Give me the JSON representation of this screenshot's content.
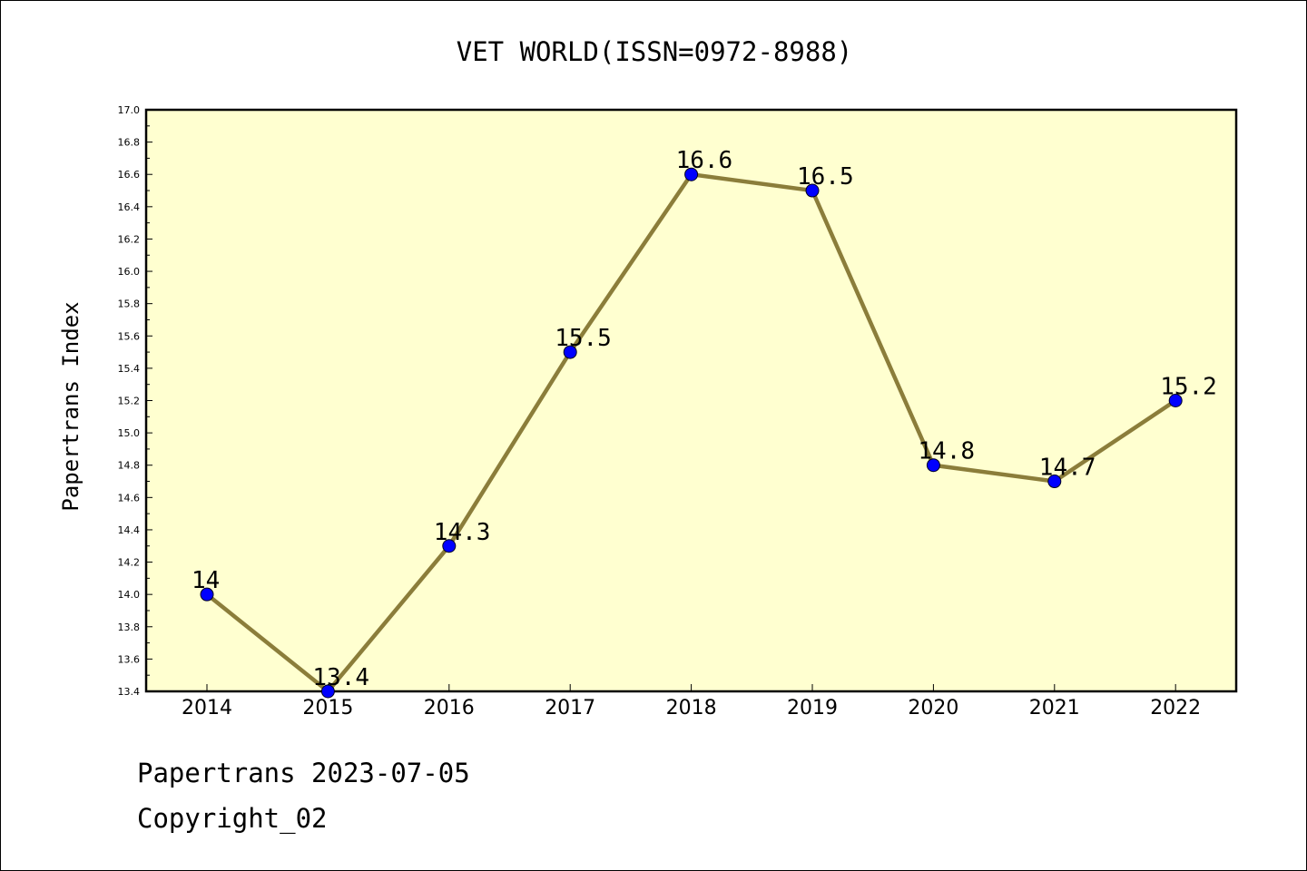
{
  "chart_data": {
    "type": "line",
    "title": "VET WORLD(ISSN=0972-8988)",
    "xlabel": "",
    "ylabel": "Papertrans Index",
    "categories": [
      "2014",
      "2015",
      "2016",
      "2017",
      "2018",
      "2019",
      "2020",
      "2021",
      "2022"
    ],
    "values": [
      14,
      13.4,
      14.3,
      15.5,
      16.6,
      16.5,
      14.8,
      14.7,
      15.2
    ],
    "data_labels": [
      "14",
      "13.4",
      "14.3",
      "15.5",
      "16.6",
      "16.5",
      "14.8",
      "14.7",
      "15.2"
    ],
    "ylim": [
      13.4,
      17.0
    ],
    "yticks": [
      "13.4",
      "13.6",
      "13.8",
      "14.0",
      "14.2",
      "14.4",
      "14.6",
      "14.8",
      "15.0",
      "15.2",
      "15.4",
      "15.6",
      "15.8",
      "16.0",
      "16.2",
      "16.4",
      "16.6",
      "16.8",
      "17.0"
    ],
    "grid": false,
    "colors": {
      "plot_background": "#ffffd0",
      "line": "#8b7d3a",
      "marker": "#0000ff"
    }
  },
  "footer": {
    "line1": "Papertrans 2023-07-05",
    "line2": "Copyright_02"
  }
}
